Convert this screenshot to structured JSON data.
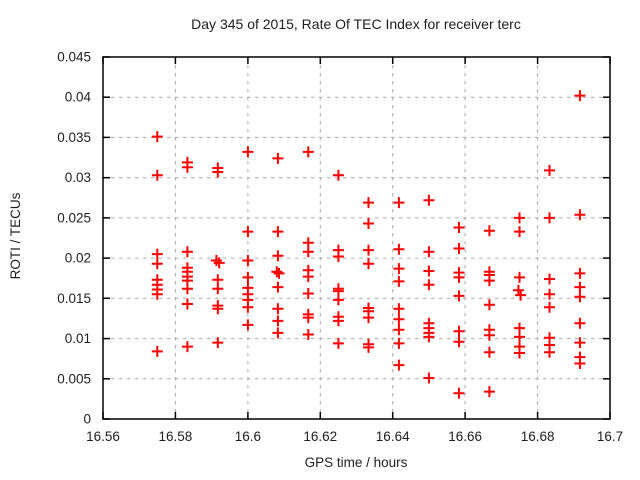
{
  "chart_data": {
    "type": "scatter",
    "title": "Day 345 of 2015, Rate Of TEC Index for receiver terc",
    "xlabel": "GPS time / hours",
    "ylabel": "ROTI / TECUs",
    "xlim": [
      16.56,
      16.7
    ],
    "ylim": [
      0,
      0.045
    ],
    "xticks": [
      16.56,
      16.58,
      16.6,
      16.62,
      16.64,
      16.66,
      16.68,
      16.7
    ],
    "xtick_labels": [
      "16.56",
      "16.58",
      "16.6",
      "16.62",
      "16.64",
      "16.66",
      "16.68",
      "16.7"
    ],
    "yticks": [
      0,
      0.005,
      0.01,
      0.015,
      0.02,
      0.025,
      0.03,
      0.035,
      0.04,
      0.045
    ],
    "ytick_labels": [
      "0",
      "0.005",
      "0.01",
      "0.015",
      "0.02",
      "0.025",
      "0.03",
      "0.035",
      "0.04",
      "0.045"
    ],
    "grid": true,
    "legend": "none",
    "marker": {
      "shape": "plus",
      "color": "#ff0000",
      "size": 11,
      "stroke_width": 2
    },
    "colors": {
      "background": "#ffffff",
      "border": "#000000",
      "grid": "#aaaaaa",
      "text": "#202020",
      "marker": "#ff0000"
    },
    "points": [
      [
        16.575,
        0.0351
      ],
      [
        16.575,
        0.0303
      ],
      [
        16.575,
        0.0205
      ],
      [
        16.575,
        0.0193
      ],
      [
        16.575,
        0.0173
      ],
      [
        16.575,
        0.0167
      ],
      [
        16.575,
        0.0161
      ],
      [
        16.575,
        0.0155
      ],
      [
        16.575,
        0.0084
      ],
      [
        16.5833,
        0.0319
      ],
      [
        16.5833,
        0.0313
      ],
      [
        16.5833,
        0.0208
      ],
      [
        16.5833,
        0.0188
      ],
      [
        16.5833,
        0.0183
      ],
      [
        16.5833,
        0.0177
      ],
      [
        16.5833,
        0.0172
      ],
      [
        16.5833,
        0.0162
      ],
      [
        16.5833,
        0.0143
      ],
      [
        16.5833,
        0.009
      ],
      [
        16.5917,
        0.0312
      ],
      [
        16.5917,
        0.0307
      ],
      [
        16.5913,
        0.0197
      ],
      [
        16.5921,
        0.0194
      ],
      [
        16.5917,
        0.0173
      ],
      [
        16.5917,
        0.0162
      ],
      [
        16.5917,
        0.0141
      ],
      [
        16.5917,
        0.0137
      ],
      [
        16.5917,
        0.0095
      ],
      [
        16.6,
        0.0332
      ],
      [
        16.6,
        0.0233
      ],
      [
        16.6,
        0.0197
      ],
      [
        16.6,
        0.0176
      ],
      [
        16.6,
        0.0163
      ],
      [
        16.6,
        0.0155
      ],
      [
        16.6,
        0.0148
      ],
      [
        16.6,
        0.0139
      ],
      [
        16.6,
        0.0117
      ],
      [
        16.6083,
        0.0324
      ],
      [
        16.6083,
        0.0233
      ],
      [
        16.6083,
        0.0203
      ],
      [
        16.608,
        0.0183
      ],
      [
        16.6086,
        0.0181
      ],
      [
        16.6083,
        0.0164
      ],
      [
        16.6083,
        0.0137
      ],
      [
        16.6083,
        0.0122
      ],
      [
        16.6083,
        0.0107
      ],
      [
        16.6167,
        0.0332
      ],
      [
        16.6167,
        0.0219
      ],
      [
        16.6167,
        0.0208
      ],
      [
        16.6167,
        0.0185
      ],
      [
        16.6167,
        0.0177
      ],
      [
        16.6167,
        0.0156
      ],
      [
        16.6167,
        0.013
      ],
      [
        16.6167,
        0.0126
      ],
      [
        16.6167,
        0.0105
      ],
      [
        16.625,
        0.0303
      ],
      [
        16.625,
        0.021
      ],
      [
        16.625,
        0.0202
      ],
      [
        16.625,
        0.0162
      ],
      [
        16.625,
        0.0159
      ],
      [
        16.625,
        0.0148
      ],
      [
        16.625,
        0.0127
      ],
      [
        16.625,
        0.0122
      ],
      [
        16.625,
        0.0094
      ],
      [
        16.6333,
        0.0269
      ],
      [
        16.6333,
        0.0243
      ],
      [
        16.6333,
        0.021
      ],
      [
        16.6333,
        0.0193
      ],
      [
        16.6333,
        0.0138
      ],
      [
        16.6333,
        0.0134
      ],
      [
        16.6333,
        0.0126
      ],
      [
        16.6333,
        0.0093
      ],
      [
        16.6333,
        0.0089
      ],
      [
        16.6417,
        0.0269
      ],
      [
        16.6417,
        0.0211
      ],
      [
        16.6417,
        0.0187
      ],
      [
        16.6417,
        0.0171
      ],
      [
        16.6417,
        0.0137
      ],
      [
        16.6417,
        0.0124
      ],
      [
        16.6417,
        0.0111
      ],
      [
        16.6417,
        0.0094
      ],
      [
        16.6417,
        0.0067
      ],
      [
        16.65,
        0.0272
      ],
      [
        16.65,
        0.0208
      ],
      [
        16.65,
        0.0184
      ],
      [
        16.65,
        0.0167
      ],
      [
        16.65,
        0.0119
      ],
      [
        16.65,
        0.0113
      ],
      [
        16.65,
        0.0107
      ],
      [
        16.65,
        0.0102
      ],
      [
        16.65,
        0.0051
      ],
      [
        16.6583,
        0.0238
      ],
      [
        16.6583,
        0.0212
      ],
      [
        16.6583,
        0.0182
      ],
      [
        16.6583,
        0.0176
      ],
      [
        16.6583,
        0.0153
      ],
      [
        16.6583,
        0.0109
      ],
      [
        16.6583,
        0.0096
      ],
      [
        16.6583,
        0.0032
      ],
      [
        16.6667,
        0.0234
      ],
      [
        16.6667,
        0.0183
      ],
      [
        16.6667,
        0.0179
      ],
      [
        16.6667,
        0.0172
      ],
      [
        16.6667,
        0.0142
      ],
      [
        16.6667,
        0.0111
      ],
      [
        16.6667,
        0.0104
      ],
      [
        16.6667,
        0.0083
      ],
      [
        16.6667,
        0.0034
      ],
      [
        16.675,
        0.025
      ],
      [
        16.675,
        0.0233
      ],
      [
        16.675,
        0.0176
      ],
      [
        16.6747,
        0.016
      ],
      [
        16.6753,
        0.0154
      ],
      [
        16.675,
        0.0113
      ],
      [
        16.675,
        0.0102
      ],
      [
        16.675,
        0.009
      ],
      [
        16.675,
        0.0082
      ],
      [
        16.6833,
        0.0309
      ],
      [
        16.6833,
        0.025
      ],
      [
        16.6833,
        0.0174
      ],
      [
        16.6833,
        0.0155
      ],
      [
        16.6833,
        0.0139
      ],
      [
        16.6833,
        0.0101
      ],
      [
        16.6833,
        0.0092
      ],
      [
        16.6833,
        0.0083
      ],
      [
        16.6917,
        0.0402
      ],
      [
        16.6917,
        0.0254
      ],
      [
        16.6917,
        0.0181
      ],
      [
        16.6917,
        0.0164
      ],
      [
        16.6917,
        0.0152
      ],
      [
        16.6917,
        0.0119
      ],
      [
        16.6917,
        0.0095
      ],
      [
        16.6917,
        0.0077
      ],
      [
        16.6917,
        0.0069
      ]
    ]
  }
}
